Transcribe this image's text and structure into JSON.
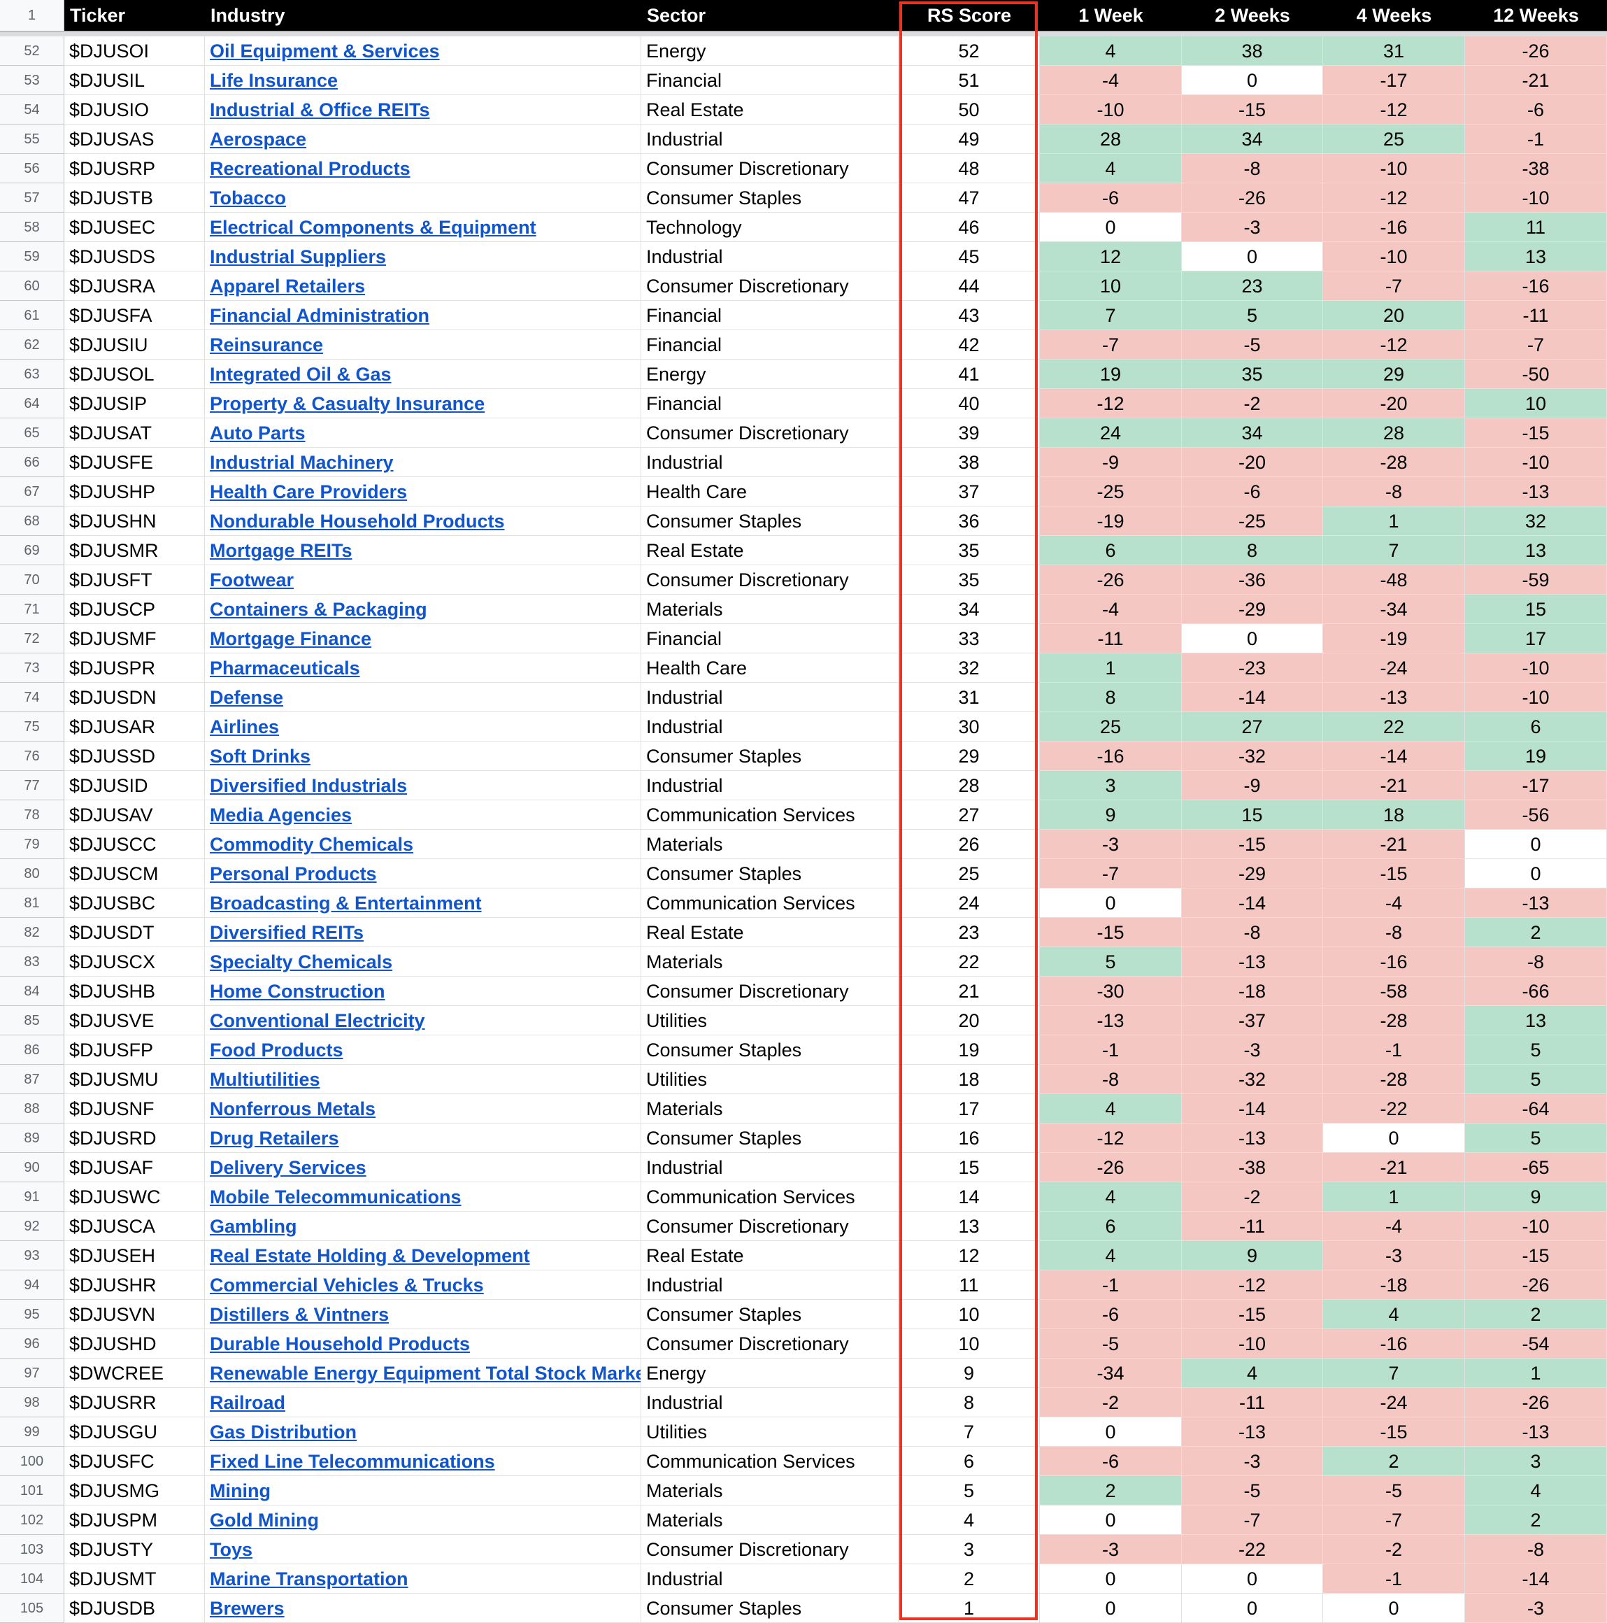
{
  "header": {
    "row_number": "1",
    "columns": [
      "Ticker",
      "Industry",
      "Sector",
      "RS Score",
      "1 Week",
      "2 Weeks",
      "4 Weeks",
      "12 Weeks"
    ]
  },
  "colors": {
    "positive": "#b7e1cd",
    "negative": "#f4c7c3",
    "zero": "#ffffff",
    "highlight_border": "#ea3323",
    "link": "#1155cc"
  },
  "rows": [
    [
      "52",
      "$DJUSOI",
      "Oil Equipment & Services",
      "Energy",
      "52",
      "4",
      "38",
      "31",
      "-26"
    ],
    [
      "53",
      "$DJUSIL",
      "Life Insurance",
      "Financial",
      "51",
      "-4",
      "0",
      "-17",
      "-21"
    ],
    [
      "54",
      "$DJUSIO",
      "Industrial & Office REITs",
      "Real Estate",
      "50",
      "-10",
      "-15",
      "-12",
      "-6"
    ],
    [
      "55",
      "$DJUSAS",
      "Aerospace",
      "Industrial",
      "49",
      "28",
      "34",
      "25",
      "-1"
    ],
    [
      "56",
      "$DJUSRP",
      "Recreational Products",
      "Consumer Discretionary",
      "48",
      "4",
      "-8",
      "-10",
      "-38"
    ],
    [
      "57",
      "$DJUSTB",
      "Tobacco",
      "Consumer Staples",
      "47",
      "-6",
      "-26",
      "-12",
      "-10"
    ],
    [
      "58",
      "$DJUSEC",
      "Electrical Components & Equipment",
      "Technology",
      "46",
      "0",
      "-3",
      "-16",
      "11"
    ],
    [
      "59",
      "$DJUSDS",
      "Industrial Suppliers",
      "Industrial",
      "45",
      "12",
      "0",
      "-10",
      "13"
    ],
    [
      "60",
      "$DJUSRA",
      "Apparel Retailers",
      "Consumer Discretionary",
      "44",
      "10",
      "23",
      "-7",
      "-16"
    ],
    [
      "61",
      "$DJUSFA",
      "Financial Administration",
      "Financial",
      "43",
      "7",
      "5",
      "20",
      "-11"
    ],
    [
      "62",
      "$DJUSIU",
      "Reinsurance",
      "Financial",
      "42",
      "-7",
      "-5",
      "-12",
      "-7"
    ],
    [
      "63",
      "$DJUSOL",
      "Integrated Oil & Gas",
      "Energy",
      "41",
      "19",
      "35",
      "29",
      "-50"
    ],
    [
      "64",
      "$DJUSIP",
      "Property & Casualty Insurance",
      "Financial",
      "40",
      "-12",
      "-2",
      "-20",
      "10"
    ],
    [
      "65",
      "$DJUSAT",
      "Auto Parts",
      "Consumer Discretionary",
      "39",
      "24",
      "34",
      "28",
      "-15"
    ],
    [
      "66",
      "$DJUSFE",
      "Industrial Machinery",
      "Industrial",
      "38",
      "-9",
      "-20",
      "-28",
      "-10"
    ],
    [
      "67",
      "$DJUSHP",
      "Health Care Providers",
      "Health Care",
      "37",
      "-25",
      "-6",
      "-8",
      "-13"
    ],
    [
      "68",
      "$DJUSHN",
      "Nondurable Household Products",
      "Consumer Staples",
      "36",
      "-19",
      "-25",
      "1",
      "32"
    ],
    [
      "69",
      "$DJUSMR",
      "Mortgage REITs",
      "Real Estate",
      "35",
      "6",
      "8",
      "7",
      "13"
    ],
    [
      "70",
      "$DJUSFT",
      "Footwear",
      "Consumer Discretionary",
      "35",
      "-26",
      "-36",
      "-48",
      "-59"
    ],
    [
      "71",
      "$DJUSCP",
      "Containers & Packaging",
      "Materials",
      "34",
      "-4",
      "-29",
      "-34",
      "15"
    ],
    [
      "72",
      "$DJUSMF",
      "Mortgage Finance",
      "Financial",
      "33",
      "-11",
      "0",
      "-19",
      "17"
    ],
    [
      "73",
      "$DJUSPR",
      "Pharmaceuticals",
      "Health Care",
      "32",
      "1",
      "-23",
      "-24",
      "-10"
    ],
    [
      "74",
      "$DJUSDN",
      "Defense",
      "Industrial",
      "31",
      "8",
      "-14",
      "-13",
      "-10"
    ],
    [
      "75",
      "$DJUSAR",
      "Airlines",
      "Industrial",
      "30",
      "25",
      "27",
      "22",
      "6"
    ],
    [
      "76",
      "$DJUSSD",
      "Soft Drinks",
      "Consumer Staples",
      "29",
      "-16",
      "-32",
      "-14",
      "19"
    ],
    [
      "77",
      "$DJUSID",
      "Diversified Industrials",
      "Industrial",
      "28",
      "3",
      "-9",
      "-21",
      "-17"
    ],
    [
      "78",
      "$DJUSAV",
      "Media Agencies",
      "Communication Services",
      "27",
      "9",
      "15",
      "18",
      "-56"
    ],
    [
      "79",
      "$DJUSCC",
      "Commodity Chemicals",
      "Materials",
      "26",
      "-3",
      "-15",
      "-21",
      "0"
    ],
    [
      "80",
      "$DJUSCM",
      "Personal Products",
      "Consumer Staples",
      "25",
      "-7",
      "-29",
      "-15",
      "0"
    ],
    [
      "81",
      "$DJUSBC",
      "Broadcasting & Entertainment",
      "Communication Services",
      "24",
      "0",
      "-14",
      "-4",
      "-13"
    ],
    [
      "82",
      "$DJUSDT",
      "Diversified REITs",
      "Real Estate",
      "23",
      "-15",
      "-8",
      "-8",
      "2"
    ],
    [
      "83",
      "$DJUSCX",
      "Specialty Chemicals",
      "Materials",
      "22",
      "5",
      "-13",
      "-16",
      "-8"
    ],
    [
      "84",
      "$DJUSHB",
      "Home Construction",
      "Consumer Discretionary",
      "21",
      "-30",
      "-18",
      "-58",
      "-66"
    ],
    [
      "85",
      "$DJUSVE",
      "Conventional Electricity",
      "Utilities",
      "20",
      "-13",
      "-37",
      "-28",
      "13"
    ],
    [
      "86",
      "$DJUSFP",
      "Food Products",
      "Consumer Staples",
      "19",
      "-1",
      "-3",
      "-1",
      "5"
    ],
    [
      "87",
      "$DJUSMU",
      "Multiutilities",
      "Utilities",
      "18",
      "-8",
      "-32",
      "-28",
      "5"
    ],
    [
      "88",
      "$DJUSNF",
      "Nonferrous Metals",
      "Materials",
      "17",
      "4",
      "-14",
      "-22",
      "-64"
    ],
    [
      "89",
      "$DJUSRD",
      "Drug Retailers",
      "Consumer Staples",
      "16",
      "-12",
      "-13",
      "0",
      "5"
    ],
    [
      "90",
      "$DJUSAF",
      "Delivery Services",
      "Industrial",
      "15",
      "-26",
      "-38",
      "-21",
      "-65"
    ],
    [
      "91",
      "$DJUSWC",
      "Mobile Telecommunications",
      "Communication Services",
      "14",
      "4",
      "-2",
      "1",
      "9"
    ],
    [
      "92",
      "$DJUSCA",
      "Gambling",
      "Consumer Discretionary",
      "13",
      "6",
      "-11",
      "-4",
      "-10"
    ],
    [
      "93",
      "$DJUSEH",
      "Real Estate Holding & Development",
      "Real Estate",
      "12",
      "4",
      "9",
      "-3",
      "-15"
    ],
    [
      "94",
      "$DJUSHR",
      "Commercial Vehicles & Trucks",
      "Industrial",
      "11",
      "-1",
      "-12",
      "-18",
      "-26"
    ],
    [
      "95",
      "$DJUSVN",
      "Distillers & Vintners",
      "Consumer Staples",
      "10",
      "-6",
      "-15",
      "4",
      "2"
    ],
    [
      "96",
      "$DJUSHD",
      "Durable Household Products",
      "Consumer Discretionary",
      "10",
      "-5",
      "-10",
      "-16",
      "-54"
    ],
    [
      "97",
      "$DWCREE",
      "Renewable Energy Equipment Total Stock Market",
      "Energy",
      "9",
      "-34",
      "4",
      "7",
      "1"
    ],
    [
      "98",
      "$DJUSRR",
      "Railroad",
      "Industrial",
      "8",
      "-2",
      "-11",
      "-24",
      "-26"
    ],
    [
      "99",
      "$DJUSGU",
      "Gas Distribution",
      "Utilities",
      "7",
      "0",
      "-13",
      "-15",
      "-13"
    ],
    [
      "100",
      "$DJUSFC",
      "Fixed Line Telecommunications",
      "Communication Services",
      "6",
      "-6",
      "-3",
      "2",
      "3"
    ],
    [
      "101",
      "$DJUSMG",
      "Mining",
      "Materials",
      "5",
      "2",
      "-5",
      "-5",
      "4"
    ],
    [
      "102",
      "$DJUSPM",
      "Gold Mining",
      "Materials",
      "4",
      "0",
      "-7",
      "-7",
      "2"
    ],
    [
      "103",
      "$DJUSTY",
      "Toys",
      "Consumer Discretionary",
      "3",
      "-3",
      "-22",
      "-2",
      "-8"
    ],
    [
      "104",
      "$DJUSMT",
      "Marine Transportation",
      "Industrial",
      "2",
      "0",
      "0",
      "-1",
      "-14"
    ],
    [
      "105",
      "$DJUSDB",
      "Brewers",
      "Consumer Staples",
      "1",
      "0",
      "0",
      "0",
      "-3"
    ]
  ]
}
